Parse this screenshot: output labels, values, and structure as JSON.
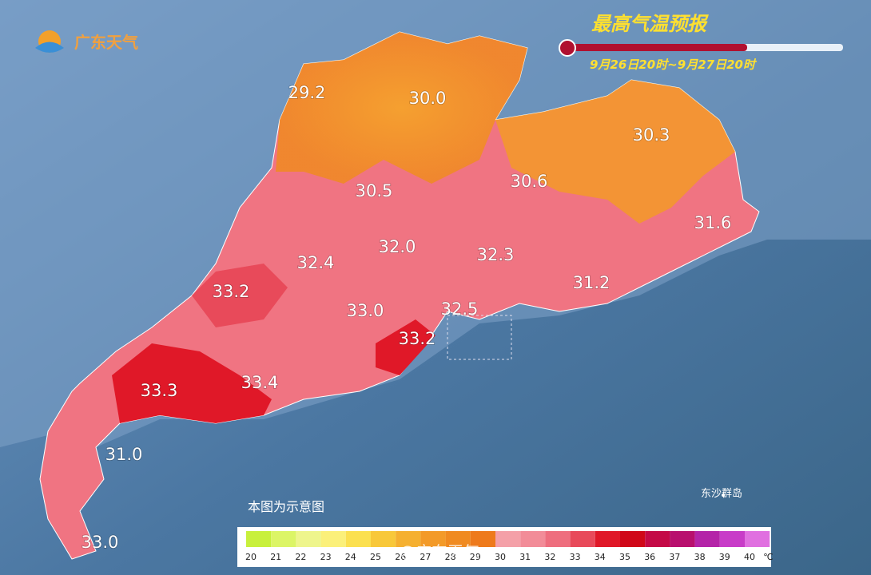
{
  "logo": "广东天气",
  "title": "最高气温预报",
  "period": "9月26日20时~9月27日20时",
  "note": "本图为示意图",
  "island": "东沙群岛",
  "watermark": "@广东天气",
  "labels": [
    "29.2",
    "30.0",
    "30.3",
    "30.5",
    "30.6",
    "31.6",
    "32.0",
    "32.4",
    "32.3",
    "33.2",
    "31.2",
    "33.0",
    "32.5",
    "33.2",
    "33.3",
    "33.4",
    "31.0",
    "33.0"
  ],
  "legend": {
    "unit": "℃",
    "items": [
      {
        "label": 20,
        "color": "#c8f03c"
      },
      {
        "label": 21,
        "color": "#dcf566"
      },
      {
        "label": 22,
        "color": "#eef58c"
      },
      {
        "label": 23,
        "color": "#fbf07a"
      },
      {
        "label": 24,
        "color": "#fbe050"
      },
      {
        "label": 25,
        "color": "#f8c83a"
      },
      {
        "label": 26,
        "color": "#f5b030"
      },
      {
        "label": 27,
        "color": "#f39a28"
      },
      {
        "label": 28,
        "color": "#f08a20"
      },
      {
        "label": 29,
        "color": "#ee7a1c"
      },
      {
        "label": 30,
        "color": "#f4a0a8"
      },
      {
        "label": 31,
        "color": "#f28c98"
      },
      {
        "label": 32,
        "color": "#ee6e7e"
      },
      {
        "label": 33,
        "color": "#e84a5a"
      },
      {
        "label": 34,
        "color": "#e01828"
      },
      {
        "label": 35,
        "color": "#d00818"
      },
      {
        "label": 36,
        "color": "#c40a46"
      },
      {
        "label": 37,
        "color": "#b8106e"
      },
      {
        "label": 38,
        "color": "#b424a8"
      },
      {
        "label": 39,
        "color": "#c83cc8"
      },
      {
        "label": 40,
        "color": "#e070e0"
      }
    ]
  }
}
